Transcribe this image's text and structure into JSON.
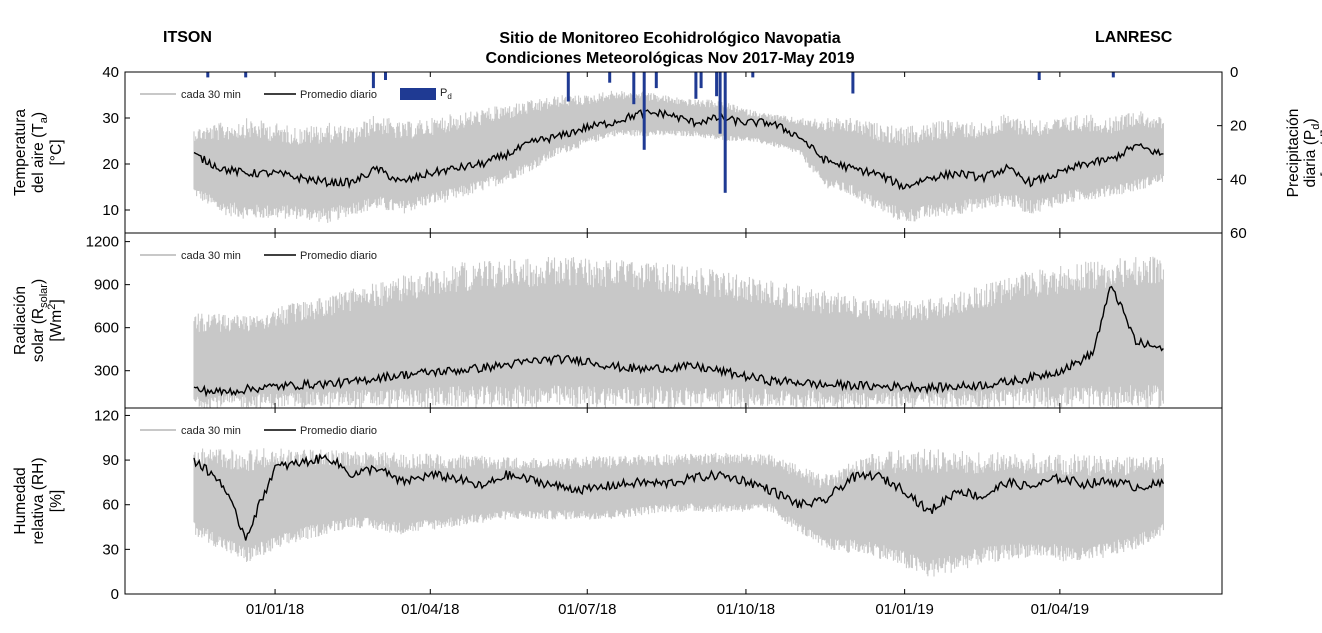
{
  "header": {
    "left": "ITSON",
    "right": "LANRESC",
    "title": "Sitio de Monitoreo Ecohidrológico Navopatia",
    "subtitle": "Condiciones Meteorológicas Nov 2017-May 2019"
  },
  "colors": {
    "raw": "#c8c8c8",
    "daily": "#000000",
    "precip": "#1f3a93"
  },
  "chart_data": [
    {
      "type": "line",
      "panel": "temperature",
      "title": "Sitio de Monitoreo Ecohidrológico Navopatia",
      "subtitle": "Condiciones Meteorológicas Nov 2017-May 2019",
      "ylabel": [
        "Temperatura",
        "del aire (T",
        "a",
        ")",
        "[°C]"
      ],
      "ylim": [
        5,
        40
      ],
      "yticks": [
        10,
        20,
        30,
        40
      ],
      "x_ticks": [
        "01/01/18",
        "01/04/18",
        "01/07/18",
        "01/10/18",
        "01/01/19",
        "01/04/19"
      ],
      "xlim": [
        "2017-10-06",
        "2019-07-04"
      ],
      "legend": {
        "raw": "cada 30 min",
        "daily": "Promedio diario",
        "precip_base": "P",
        "precip_sub": "d"
      },
      "series": [
        {
          "name": "cada 30 min",
          "style": "band",
          "x": [
            "2017-11-15",
            "2017-12-01",
            "2017-12-15",
            "2018-01-01",
            "2018-01-15",
            "2018-02-01",
            "2018-02-15",
            "2018-03-01",
            "2018-03-15",
            "2018-04-01",
            "2018-04-15",
            "2018-05-01",
            "2018-05-15",
            "2018-06-01",
            "2018-06-15",
            "2018-07-01",
            "2018-07-15",
            "2018-08-01",
            "2018-08-15",
            "2018-09-01",
            "2018-09-15",
            "2018-10-01",
            "2018-10-15",
            "2018-11-01",
            "2018-11-15",
            "2018-12-01",
            "2018-12-15",
            "2019-01-01",
            "2019-01-15",
            "2019-02-01",
            "2019-02-15",
            "2019-03-01",
            "2019-03-15",
            "2019-04-01",
            "2019-04-15",
            "2019-05-01",
            "2019-05-15",
            "2019-05-31"
          ],
          "low": [
            13,
            9,
            8,
            8,
            8,
            7,
            9,
            10,
            9,
            11,
            12,
            14,
            16,
            19,
            22,
            24,
            26,
            26,
            26,
            26,
            25,
            25,
            24,
            22,
            15,
            13,
            10,
            7,
            8,
            9,
            10,
            11,
            9,
            11,
            12,
            13,
            14,
            16
          ],
          "high": [
            28,
            29,
            30,
            29,
            28,
            29,
            28,
            31,
            29,
            30,
            31,
            32,
            33,
            34,
            35,
            35,
            36,
            36,
            35,
            34,
            34,
            32,
            31,
            30,
            30,
            30,
            29,
            28,
            29,
            30,
            29,
            31,
            30,
            30,
            31,
            30,
            32,
            30
          ]
        },
        {
          "name": "Promedio diario",
          "x": [
            "2017-11-15",
            "2017-12-01",
            "2017-12-15",
            "2018-01-01",
            "2018-01-15",
            "2018-02-01",
            "2018-02-15",
            "2018-03-01",
            "2018-03-15",
            "2018-04-01",
            "2018-04-15",
            "2018-05-01",
            "2018-05-15",
            "2018-06-01",
            "2018-06-15",
            "2018-07-01",
            "2018-07-15",
            "2018-08-01",
            "2018-08-15",
            "2018-09-01",
            "2018-09-15",
            "2018-10-01",
            "2018-10-15",
            "2018-11-01",
            "2018-11-15",
            "2018-12-01",
            "2018-12-15",
            "2019-01-01",
            "2019-01-15",
            "2019-02-01",
            "2019-02-15",
            "2019-03-01",
            "2019-03-15",
            "2019-04-01",
            "2019-04-15",
            "2019-05-01",
            "2019-05-15",
            "2019-05-31"
          ],
          "values": [
            22,
            19,
            18,
            18,
            17,
            16,
            16,
            19,
            16,
            18,
            19,
            20,
            22,
            25,
            26,
            28,
            29,
            31,
            31,
            29,
            30,
            29,
            29,
            26,
            21,
            19,
            18,
            15,
            17,
            18,
            17,
            19,
            16,
            18,
            20,
            21,
            24,
            22
          ]
        },
        {
          "name": "P",
          "axis": "right",
          "ylabel": [
            "Precipitación",
            "diaria (P",
            "d",
            ")",
            "[mm/d]"
          ],
          "ylim": [
            0,
            60
          ],
          "yticks": [
            0,
            20,
            40,
            60
          ],
          "x": [
            "2017-11-23",
            "2017-12-15",
            "2018-02-27",
            "2018-03-06",
            "2018-06-20",
            "2018-07-14",
            "2018-07-28",
            "2018-08-03",
            "2018-08-10",
            "2018-09-02",
            "2018-09-05",
            "2018-09-14",
            "2018-09-16",
            "2018-09-19",
            "2018-10-05",
            "2018-12-02",
            "2019-03-20",
            "2019-05-02"
          ],
          "values": [
            2,
            2,
            6,
            3,
            11,
            4,
            12,
            29,
            6,
            10,
            6,
            9,
            23,
            45,
            2,
            8,
            3,
            2
          ]
        }
      ]
    },
    {
      "type": "line",
      "panel": "radiation",
      "ylabel": [
        "Radiación",
        "solar (R",
        "solar",
        ")",
        "[Wm",
        "2",
        "]"
      ],
      "ylim": [
        40,
        1260
      ],
      "yticks": [
        300,
        600,
        900,
        1200
      ],
      "legend": {
        "raw": "cada 30 min",
        "daily": "Promedio diario"
      },
      "series": [
        {
          "name": "cada 30 min",
          "style": "band",
          "x": [
            "2017-11-15",
            "2017-12-15",
            "2018-01-15",
            "2018-02-15",
            "2018-03-15",
            "2018-04-15",
            "2018-05-15",
            "2018-06-15",
            "2018-07-15",
            "2018-08-15",
            "2018-09-15",
            "2018-10-15",
            "2018-11-15",
            "2018-12-15",
            "2019-01-15",
            "2019-02-15",
            "2019-03-15",
            "2019-04-15",
            "2019-05-15",
            "2019-05-31"
          ],
          "low": [
            40,
            40,
            40,
            40,
            40,
            40,
            40,
            40,
            40,
            40,
            40,
            40,
            40,
            40,
            40,
            40,
            40,
            40,
            40,
            40
          ],
          "high": [
            700,
            700,
            780,
            880,
            960,
            1050,
            1090,
            1100,
            1080,
            1050,
            1000,
            930,
            860,
            800,
            800,
            900,
            1000,
            1060,
            1100,
            1100
          ]
        },
        {
          "name": "Promedio diario",
          "x": [
            "2017-11-15",
            "2017-12-01",
            "2017-12-15",
            "2018-01-01",
            "2018-01-15",
            "2018-02-01",
            "2018-02-15",
            "2018-03-01",
            "2018-03-15",
            "2018-04-01",
            "2018-04-15",
            "2018-05-01",
            "2018-05-15",
            "2018-06-01",
            "2018-06-15",
            "2018-07-01",
            "2018-07-15",
            "2018-08-01",
            "2018-08-15",
            "2018-09-01",
            "2018-09-15",
            "2018-10-01",
            "2018-10-15",
            "2018-11-01",
            "2018-11-15",
            "2018-12-01",
            "2018-12-15",
            "2019-01-01",
            "2019-01-15",
            "2019-02-01",
            "2019-02-15",
            "2019-03-01",
            "2019-03-15",
            "2019-04-01",
            "2019-04-10",
            "2019-04-20",
            "2019-05-01",
            "2019-05-15",
            "2019-05-31"
          ],
          "values": [
            170,
            150,
            170,
            190,
            200,
            210,
            220,
            250,
            270,
            290,
            300,
            320,
            340,
            370,
            380,
            370,
            330,
            310,
            320,
            330,
            300,
            260,
            230,
            220,
            200,
            200,
            190,
            190,
            180,
            190,
            200,
            220,
            250,
            300,
            350,
            420,
            900,
            500,
            450
          ]
        }
      ]
    },
    {
      "type": "line",
      "panel": "humidity",
      "ylabel": [
        "Humedad",
        "relativa (RH)",
        "[%]"
      ],
      "ylim": [
        0,
        125
      ],
      "yticks": [
        0,
        30,
        60,
        90,
        120
      ],
      "legend": {
        "raw": "cada 30 min",
        "daily": "Promedio diario"
      },
      "series": [
        {
          "name": "cada 30 min",
          "style": "band",
          "x": [
            "2017-11-15",
            "2017-12-15",
            "2018-01-15",
            "2018-02-15",
            "2018-03-15",
            "2018-04-15",
            "2018-05-15",
            "2018-06-15",
            "2018-07-15",
            "2018-08-15",
            "2018-09-15",
            "2018-10-15",
            "2018-11-15",
            "2018-12-15",
            "2019-01-15",
            "2019-02-15",
            "2019-03-15",
            "2019-04-15",
            "2019-05-15",
            "2019-05-31"
          ],
          "low": [
            40,
            20,
            35,
            45,
            40,
            45,
            50,
            50,
            50,
            55,
            55,
            55,
            30,
            25,
            10,
            20,
            25,
            20,
            30,
            40
          ],
          "high": [
            98,
            98,
            98,
            96,
            95,
            94,
            92,
            92,
            93,
            94,
            95,
            94,
            80,
            96,
            98,
            96,
            95,
            94,
            92,
            92
          ]
        },
        {
          "name": "Promedio diario",
          "x": [
            "2017-11-15",
            "2017-12-01",
            "2017-12-15",
            "2018-01-01",
            "2018-01-15",
            "2018-02-01",
            "2018-02-15",
            "2018-03-01",
            "2018-03-15",
            "2018-04-01",
            "2018-04-15",
            "2018-05-01",
            "2018-05-15",
            "2018-06-01",
            "2018-06-15",
            "2018-07-01",
            "2018-07-15",
            "2018-08-01",
            "2018-08-15",
            "2018-09-01",
            "2018-09-15",
            "2018-10-01",
            "2018-10-15",
            "2018-11-01",
            "2018-11-15",
            "2018-12-01",
            "2018-12-15",
            "2019-01-01",
            "2019-01-15",
            "2019-02-01",
            "2019-02-15",
            "2019-03-01",
            "2019-03-15",
            "2019-04-01",
            "2019-04-15",
            "2019-05-01",
            "2019-05-15",
            "2019-05-31"
          ],
          "values": [
            90,
            75,
            38,
            85,
            88,
            92,
            80,
            85,
            75,
            80,
            78,
            72,
            80,
            76,
            72,
            70,
            73,
            75,
            74,
            78,
            80,
            76,
            70,
            60,
            62,
            78,
            80,
            70,
            55,
            70,
            65,
            75,
            72,
            78,
            74,
            76,
            72,
            74
          ]
        }
      ]
    }
  ]
}
